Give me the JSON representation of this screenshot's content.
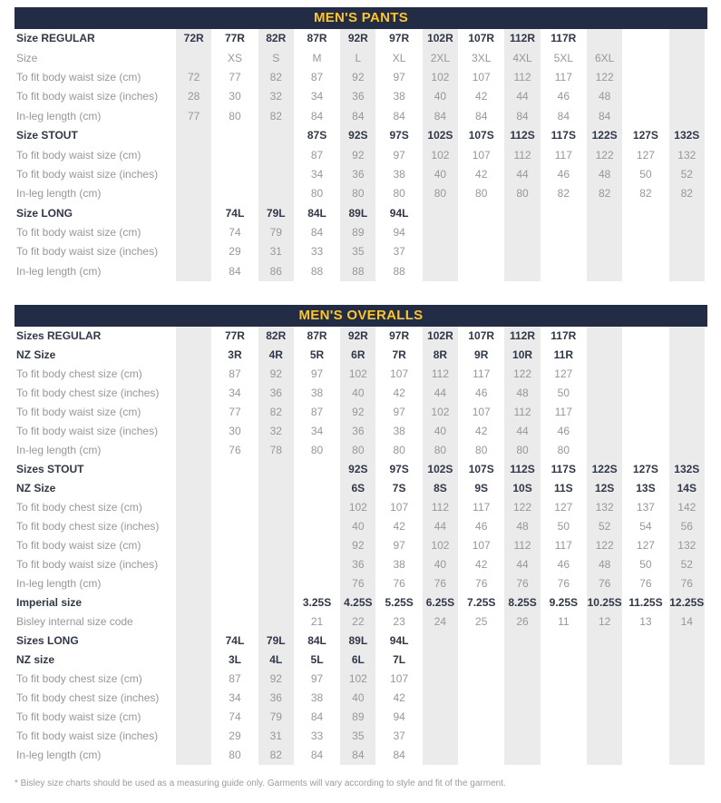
{
  "colors": {
    "title_bar_bg": "#222c45",
    "title_text": "#fcc52a",
    "column_band": "#ebebeb",
    "bold_text": "#303748",
    "value_text": "#96979c"
  },
  "footnote": "* Bisley size charts should be used as a measuring guide only. Garments will vary according to style and fit of the garment.",
  "tables": [
    {
      "title": "MEN'S PANTS",
      "num_cols": 13,
      "rows": [
        {
          "label": "Size REGULAR",
          "label_bold": true,
          "values_bold": true,
          "start": 1,
          "values": [
            "72R",
            "77R",
            "82R",
            "87R",
            "92R",
            "97R",
            "102R",
            "107R",
            "112R",
            "117R"
          ]
        },
        {
          "label": "Size",
          "label_bold": false,
          "values_bold": false,
          "start": 2,
          "values": [
            "XS",
            "S",
            "M",
            "L",
            "XL",
            "2XL",
            "3XL",
            "4XL",
            "5XL",
            "6XL"
          ]
        },
        {
          "label": "To fit body waist size (cm)",
          "label_bold": false,
          "values_bold": false,
          "start": 1,
          "values": [
            "72",
            "77",
            "82",
            "87",
            "92",
            "97",
            "102",
            "107",
            "112",
            "117",
            "122"
          ]
        },
        {
          "label": "To fit body waist size (inches)",
          "label_bold": false,
          "values_bold": false,
          "start": 1,
          "values": [
            "28",
            "30",
            "32",
            "34",
            "36",
            "38",
            "40",
            "42",
            "44",
            "46",
            "48"
          ]
        },
        {
          "label": "In-leg length (cm)",
          "label_bold": false,
          "values_bold": false,
          "start": 1,
          "values": [
            "77",
            "80",
            "82",
            "84",
            "84",
            "84",
            "84",
            "84",
            "84",
            "84",
            "84"
          ]
        },
        {
          "label": "Size STOUT",
          "label_bold": true,
          "values_bold": true,
          "start": 4,
          "values": [
            "87S",
            "92S",
            "97S",
            "102S",
            "107S",
            "112S",
            "117S",
            "122S",
            "127S",
            "132S"
          ]
        },
        {
          "label": "To fit body waist size (cm)",
          "label_bold": false,
          "values_bold": false,
          "start": 4,
          "values": [
            "87",
            "92",
            "97",
            "102",
            "107",
            "112",
            "117",
            "122",
            "127",
            "132"
          ]
        },
        {
          "label": "To fit body waist size (inches)",
          "label_bold": false,
          "values_bold": false,
          "start": 4,
          "values": [
            "34",
            "36",
            "38",
            "40",
            "42",
            "44",
            "46",
            "48",
            "50",
            "52"
          ]
        },
        {
          "label": "In-leg length (cm)",
          "label_bold": false,
          "values_bold": false,
          "start": 4,
          "values": [
            "80",
            "80",
            "80",
            "80",
            "80",
            "80",
            "82",
            "82",
            "82",
            "82"
          ]
        },
        {
          "label": "Size LONG",
          "label_bold": true,
          "values_bold": true,
          "start": 2,
          "values": [
            "74L",
            "79L",
            "84L",
            "89L",
            "94L"
          ]
        },
        {
          "label": "To fit body waist size (cm)",
          "label_bold": false,
          "values_bold": false,
          "start": 2,
          "values": [
            "74",
            "79",
            "84",
            "89",
            "94"
          ]
        },
        {
          "label": "To fit body waist size (inches)",
          "label_bold": false,
          "values_bold": false,
          "start": 2,
          "values": [
            "29",
            "31",
            "33",
            "35",
            "37"
          ]
        },
        {
          "label": "In-leg length (cm)",
          "label_bold": false,
          "values_bold": false,
          "start": 2,
          "values": [
            "84",
            "86",
            "88",
            "88",
            "88"
          ]
        }
      ]
    },
    {
      "title": "MEN'S OVERALLS",
      "num_cols": 13,
      "rows": [
        {
          "label": "Sizes REGULAR",
          "label_bold": true,
          "values_bold": true,
          "start": 2,
          "values": [
            "77R",
            "82R",
            "87R",
            "92R",
            "97R",
            "102R",
            "107R",
            "112R",
            "117R"
          ]
        },
        {
          "label": "NZ Size",
          "label_bold": true,
          "values_bold": true,
          "start": 2,
          "values": [
            "3R",
            "4R",
            "5R",
            "6R",
            "7R",
            "8R",
            "9R",
            "10R",
            "11R"
          ]
        },
        {
          "label": "To fit body chest size (cm)",
          "label_bold": false,
          "values_bold": false,
          "start": 2,
          "values": [
            "87",
            "92",
            "97",
            "102",
            "107",
            "112",
            "117",
            "122",
            "127"
          ]
        },
        {
          "label": "To fit body chest size (inches)",
          "label_bold": false,
          "values_bold": false,
          "start": 2,
          "values": [
            "34",
            "36",
            "38",
            "40",
            "42",
            "44",
            "46",
            "48",
            "50"
          ]
        },
        {
          "label": "To fit body waist size (cm)",
          "label_bold": false,
          "values_bold": false,
          "start": 2,
          "values": [
            "77",
            "82",
            "87",
            "92",
            "97",
            "102",
            "107",
            "112",
            "117"
          ]
        },
        {
          "label": "To fit body waist size (inches)",
          "label_bold": false,
          "values_bold": false,
          "start": 2,
          "values": [
            "30",
            "32",
            "34",
            "36",
            "38",
            "40",
            "42",
            "44",
            "46"
          ]
        },
        {
          "label": "In-leg length (cm)",
          "label_bold": false,
          "values_bold": false,
          "start": 2,
          "values": [
            "76",
            "78",
            "80",
            "80",
            "80",
            "80",
            "80",
            "80",
            "80"
          ]
        },
        {
          "label": "Sizes STOUT",
          "label_bold": true,
          "values_bold": true,
          "start": 5,
          "values": [
            "92S",
            "97S",
            "102S",
            "107S",
            "112S",
            "117S",
            "122S",
            "127S",
            "132S"
          ]
        },
        {
          "label": "NZ Size",
          "label_bold": true,
          "values_bold": true,
          "start": 5,
          "values": [
            "6S",
            "7S",
            "8S",
            "9S",
            "10S",
            "11S",
            "12S",
            "13S",
            "14S"
          ]
        },
        {
          "label": "To fit body chest size (cm)",
          "label_bold": false,
          "values_bold": false,
          "start": 5,
          "values": [
            "102",
            "107",
            "112",
            "117",
            "122",
            "127",
            "132",
            "137",
            "142"
          ]
        },
        {
          "label": "To fit body chest size (inches)",
          "label_bold": false,
          "values_bold": false,
          "start": 5,
          "values": [
            "40",
            "42",
            "44",
            "46",
            "48",
            "50",
            "52",
            "54",
            "56"
          ]
        },
        {
          "label": "To fit body waist size (cm)",
          "label_bold": false,
          "values_bold": false,
          "start": 5,
          "values": [
            "92",
            "97",
            "102",
            "107",
            "112",
            "117",
            "122",
            "127",
            "132"
          ]
        },
        {
          "label": "To fit body waist size (inches)",
          "label_bold": false,
          "values_bold": false,
          "start": 5,
          "values": [
            "36",
            "38",
            "40",
            "42",
            "44",
            "46",
            "48",
            "50",
            "52"
          ]
        },
        {
          "label": "In-leg length (cm)",
          "label_bold": false,
          "values_bold": false,
          "start": 5,
          "values": [
            "76",
            "76",
            "76",
            "76",
            "76",
            "76",
            "76",
            "76",
            "76"
          ]
        },
        {
          "label": "Imperial size",
          "label_bold": true,
          "values_bold": true,
          "start": 4,
          "values": [
            "3.25S",
            "4.25S",
            "5.25S",
            "6.25S",
            "7.25S",
            "8.25S",
            "9.25S",
            "10.25S",
            "11.25S",
            "12.25S"
          ]
        },
        {
          "label": "Bisley internal size code",
          "label_bold": false,
          "values_bold": false,
          "start": 4,
          "values": [
            "21",
            "22",
            "23",
            "24",
            "25",
            "26",
            "11",
            "12",
            "13",
            "14"
          ]
        },
        {
          "label": "Sizes LONG",
          "label_bold": true,
          "values_bold": true,
          "start": 2,
          "values": [
            "74L",
            "79L",
            "84L",
            "89L",
            "94L"
          ]
        },
        {
          "label": "NZ size",
          "label_bold": true,
          "values_bold": true,
          "start": 2,
          "values": [
            "3L",
            "4L",
            "5L",
            "6L",
            "7L"
          ]
        },
        {
          "label": "To fit body chest size (cm)",
          "label_bold": false,
          "values_bold": false,
          "start": 2,
          "values": [
            "87",
            "92",
            "97",
            "102",
            "107"
          ]
        },
        {
          "label": "To fit body chest size (inches)",
          "label_bold": false,
          "values_bold": false,
          "start": 2,
          "values": [
            "34",
            "36",
            "38",
            "40",
            "42"
          ]
        },
        {
          "label": "To fit body waist size (cm)",
          "label_bold": false,
          "values_bold": false,
          "start": 2,
          "values": [
            "74",
            "79",
            "84",
            "89",
            "94"
          ]
        },
        {
          "label": "To fit body waist size (inches)",
          "label_bold": false,
          "values_bold": false,
          "start": 2,
          "values": [
            "29",
            "31",
            "33",
            "35",
            "37"
          ]
        },
        {
          "label": "In-leg length (cm)",
          "label_bold": false,
          "values_bold": false,
          "start": 2,
          "values": [
            "80",
            "82",
            "84",
            "84",
            "84"
          ]
        }
      ]
    }
  ]
}
